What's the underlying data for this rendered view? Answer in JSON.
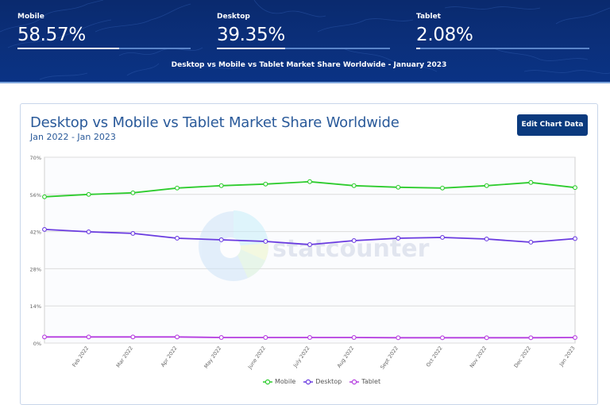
{
  "hero": {
    "stats": [
      {
        "label": "Mobile",
        "value": "58.57%",
        "fill_pct": 58.57
      },
      {
        "label": "Desktop",
        "value": "39.35%",
        "fill_pct": 39.35
      },
      {
        "label": "Tablet",
        "value": "2.08%",
        "fill_pct": 2.08
      }
    ],
    "caption": "Desktop vs Mobile vs Tablet Market Share Worldwide - January 2023"
  },
  "card": {
    "title": "Desktop vs Mobile vs Tablet Market Share Worldwide",
    "subtitle": "Jan 2022 - Jan 2023",
    "edit_button": "Edit Chart Data",
    "watermark": "statcounter"
  },
  "chart_data": {
    "type": "line",
    "title": "Desktop vs Mobile vs Tablet Market Share Worldwide",
    "subtitle": "Jan 2022 - Jan 2023",
    "xlabel": "",
    "ylabel": "",
    "ylim": [
      0,
      70
    ],
    "yticks": [
      "0%",
      "14%",
      "28%",
      "42%",
      "56%",
      "70%"
    ],
    "ytick_values": [
      0,
      14,
      28,
      42,
      56,
      70
    ],
    "grid": true,
    "legend_position": "bottom",
    "x": [
      "Jan 2022",
      "Feb 2022",
      "Mar 2022",
      "Apr 2022",
      "May 2022",
      "June 2022",
      "July 2022",
      "Aug 2022",
      "Sept 2022",
      "Oct 2022",
      "Nov 2022",
      "Dec 2022",
      "Jan 2023"
    ],
    "x_tick_labels": [
      "",
      "Feb 2022",
      "Mar 2022",
      "Apr 2022",
      "May 2022",
      "June 2022",
      "July 2022",
      "Aug 2022",
      "Sept 2022",
      "Oct 2022",
      "Nov 2022",
      "Dec 2022",
      "Jan 2023"
    ],
    "series": [
      {
        "name": "Mobile",
        "color": "#2ecc2e",
        "values": [
          55.1,
          56.0,
          56.6,
          58.4,
          59.3,
          59.9,
          60.8,
          59.3,
          58.7,
          58.4,
          59.3,
          60.5,
          58.57
        ]
      },
      {
        "name": "Desktop",
        "color": "#6a3be0",
        "values": [
          42.8,
          41.9,
          41.3,
          39.5,
          38.9,
          38.3,
          37.1,
          38.6,
          39.5,
          39.8,
          39.2,
          38.0,
          39.35
        ]
      },
      {
        "name": "Tablet",
        "color": "#b53de0",
        "values": [
          2.3,
          2.3,
          2.3,
          2.3,
          2.1,
          2.1,
          2.1,
          2.1,
          2.0,
          2.0,
          2.0,
          2.0,
          2.08
        ]
      }
    ]
  },
  "legend": [
    {
      "label": "Mobile",
      "color": "#2ecc2e"
    },
    {
      "label": "Desktop",
      "color": "#6a3be0"
    },
    {
      "label": "Tablet",
      "color": "#b53de0"
    }
  ]
}
